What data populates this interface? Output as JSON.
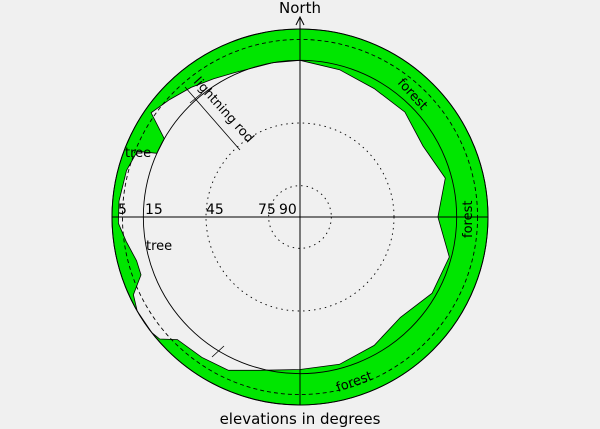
{
  "title": "North",
  "footer": "elevations in degrees",
  "colors": {
    "obstruction": "#00e600",
    "background": "#f0f0f0",
    "lines": "#000000"
  },
  "elevation_rings": [
    {
      "elevation": 5,
      "label": "5",
      "style": "dashed"
    },
    {
      "elevation": 15,
      "label": "15",
      "style": "solid"
    },
    {
      "elevation": 45,
      "label": "45",
      "style": "dotted"
    },
    {
      "elevation": 75,
      "label": "75",
      "style": "dotted"
    },
    {
      "elevation": 90,
      "label": "90",
      "style": "none"
    }
  ],
  "horizon_profile": {
    "azimuth_deg": [
      0,
      15,
      30,
      45,
      60,
      75,
      90,
      105,
      120,
      135,
      150,
      165,
      180,
      195,
      205,
      215,
      225,
      229,
      232,
      240,
      245,
      250,
      255,
      262,
      268,
      275,
      285,
      292,
      294,
      300,
      305,
      312,
      320,
      328,
      335,
      341,
      350,
      360
    ],
    "elevation_deg": [
      15,
      17,
      19,
      19,
      22,
      18,
      24,
      16,
      17,
      22,
      19,
      17,
      17,
      14,
      9,
      8,
      7,
      1,
      0,
      0,
      2,
      9,
      9,
      6,
      3,
      3,
      4,
      6,
      15,
      15,
      3,
      6,
      9,
      12,
      14,
      15,
      15,
      15
    ]
  },
  "annotations": [
    {
      "label": "forest",
      "azimuth": 45,
      "elevation": 6
    },
    {
      "label": "forest",
      "azimuth": 90,
      "elevation": 6
    },
    {
      "label": "forest",
      "azimuth": 160,
      "elevation": 6
    },
    {
      "label": "tree",
      "azimuth": 292,
      "elevation": 6
    },
    {
      "label": "tree",
      "azimuth": 255,
      "elevation": 15
    },
    {
      "label": "lightning rod",
      "azimuth": 315,
      "elevation": 25
    }
  ]
}
